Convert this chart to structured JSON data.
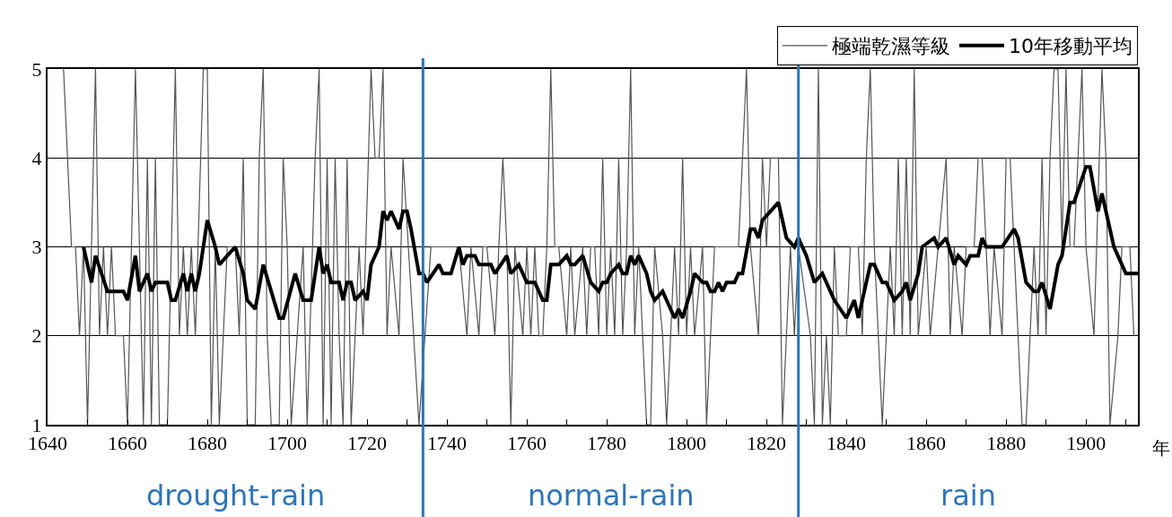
{
  "chart_data": {
    "type": "line",
    "xlabel": "年",
    "xlim": [
      1640,
      1913
    ],
    "xticks": [
      1640,
      {
        "value": 1650,
        "label": null
      },
      1660,
      {
        "value": 1670,
        "label": null
      },
      1680,
      {
        "value": 1690,
        "label": null
      },
      1700,
      {
        "value": 1710,
        "label": null
      },
      1720,
      {
        "value": 1730,
        "label": null
      },
      1740,
      {
        "value": 1750,
        "label": null
      },
      1760,
      {
        "value": 1770,
        "label": null
      },
      1780,
      {
        "value": 1790,
        "label": null
      },
      1800,
      {
        "value": 1810,
        "label": null
      },
      1820,
      {
        "value": 1830,
        "label": null
      },
      1840,
      {
        "value": 1850,
        "label": null
      },
      1860,
      {
        "value": 1870,
        "label": null
      },
      1880,
      {
        "value": 1890,
        "label": null
      },
      1900,
      {
        "value": 1910,
        "label": null
      }
    ],
    "ylim": [
      1,
      5
    ],
    "yticks": [
      1,
      2,
      3,
      4,
      5
    ],
    "grid": "y",
    "legend": "top right",
    "marker": "none",
    "line_style": "solid",
    "series": [
      {
        "name": "極端乾濕等級",
        "color": "#555555",
        "x": [
          1644,
          1646,
          1647,
          1648,
          1649,
          1650,
          1652,
          1653,
          1654,
          1655,
          1656,
          1657,
          1659,
          1660,
          1662,
          1663,
          1664,
          1665,
          1666,
          1667,
          1668,
          1670,
          1672,
          1673,
          1674,
          1675,
          1676,
          1677,
          1679,
          1680,
          1681,
          1682,
          1683,
          1685,
          1687,
          1688,
          1689,
          1690,
          1692,
          1693,
          1694,
          1695,
          1696,
          1698,
          1699,
          1700,
          1701,
          1704,
          1705,
          1707,
          1708,
          1709,
          1710,
          1711,
          1712,
          1713,
          1714,
          1715,
          1716,
          1718,
          1719,
          1721,
          1722,
          1723,
          1724,
          1725,
          1726,
          1728,
          1729,
          1733,
          1736,
          1743,
          1745,
          1746,
          1748,
          1749,
          1750,
          1752,
          1753,
          1754,
          1755,
          1756,
          1757,
          1759,
          1760,
          1761,
          1762,
          1763,
          1764,
          1765,
          1766,
          1767,
          1768,
          1770,
          1771,
          1772,
          1774,
          1775,
          1776,
          1777,
          1778,
          1779,
          1780,
          1781,
          1782,
          1783,
          1784,
          1785,
          1786,
          1787,
          1788,
          1790,
          1791,
          1792,
          1794,
          1795,
          1797,
          1798,
          1799,
          1800,
          1801,
          1802,
          1804,
          1805,
          1807,
          1810,
          1813,
          1815,
          1816,
          1818,
          1819,
          1820,
          1821,
          1823,
          1824,
          1826,
          1827,
          1828,
          1831,
          1832,
          1833,
          1834,
          1835,
          1836,
          1837,
          1838,
          1840,
          1841,
          1843,
          1844,
          1845,
          1846,
          1847,
          1849,
          1850,
          1851,
          1852,
          1853,
          1854,
          1855,
          1856,
          1857,
          1858,
          1860,
          1861,
          1863,
          1865,
          1866,
          1867,
          1869,
          1870,
          1872,
          1873,
          1874,
          1876,
          1877,
          1879,
          1880,
          1881,
          1883,
          1884,
          1885,
          1886,
          1887,
          1888,
          1889,
          1890,
          1891,
          1892,
          1893,
          1894,
          1895,
          1896,
          1897,
          1898,
          1899,
          1900,
          1902,
          1904,
          1905,
          1906,
          1908,
          1909,
          1911,
          1912
        ],
        "values": [
          5,
          3,
          3,
          2,
          3,
          1,
          5,
          2,
          3,
          2,
          3,
          2,
          2,
          1,
          5,
          3,
          1,
          4,
          1,
          4,
          1,
          1,
          5,
          2,
          3,
          2,
          3,
          2,
          5,
          5,
          1,
          3,
          1,
          3,
          3,
          2,
          4,
          1,
          1,
          4,
          5,
          2,
          1,
          1,
          4,
          3,
          1,
          3,
          1,
          4,
          5,
          1,
          4,
          1,
          4,
          2,
          1,
          4,
          1,
          3,
          2,
          5,
          4,
          4,
          5,
          2,
          3,
          2,
          4,
          1,
          3,
          3,
          2,
          3,
          2,
          3,
          3,
          2,
          3,
          4,
          3,
          1,
          3,
          2,
          3,
          2,
          3,
          2,
          2,
          3,
          5,
          3,
          3,
          2,
          3,
          2,
          3,
          2,
          3,
          3,
          2,
          4,
          2,
          3,
          2,
          4,
          2,
          3,
          5,
          2,
          3,
          1,
          1,
          3,
          2,
          1,
          3,
          2,
          4,
          2,
          3,
          2,
          3,
          1,
          3,
          3,
          3,
          5,
          3,
          2,
          4,
          3,
          4,
          4,
          1,
          3,
          2,
          3,
          2,
          1,
          5,
          1,
          2,
          1,
          3,
          2,
          2,
          3,
          3,
          2,
          4,
          5,
          3,
          1,
          2,
          3,
          2,
          4,
          2,
          4,
          2,
          5,
          2,
          3,
          2,
          3,
          4,
          2,
          3,
          2,
          3,
          3,
          4,
          4,
          2,
          3,
          2,
          4,
          4,
          2,
          1,
          1,
          2,
          3,
          2,
          4,
          2,
          4,
          5,
          5,
          3,
          5,
          3,
          3,
          4,
          5,
          3,
          2,
          5,
          4,
          1,
          2,
          3,
          3,
          2
        ]
      },
      {
        "name": "10年移動平均",
        "color": "#000000",
        "x": [
          1649,
          1651,
          1652,
          1655,
          1659,
          1660,
          1662,
          1663,
          1665,
          1666,
          1667,
          1670,
          1671,
          1672,
          1674,
          1675,
          1676,
          1677,
          1678,
          1680,
          1682,
          1683,
          1685,
          1687,
          1689,
          1690,
          1692,
          1694,
          1696,
          1698,
          1699,
          1702,
          1704,
          1706,
          1708,
          1709,
          1710,
          1711,
          1713,
          1714,
          1715,
          1716,
          1717,
          1719,
          1720,
          1721,
          1723,
          1724,
          1725,
          1726,
          1728,
          1729,
          1730,
          1731,
          1733,
          1734,
          1735,
          1738,
          1739,
          1741,
          1743,
          1744,
          1745,
          1747,
          1748,
          1751,
          1752,
          1755,
          1756,
          1758,
          1760,
          1762,
          1764,
          1765,
          1766,
          1768,
          1770,
          1771,
          1772,
          1774,
          1776,
          1778,
          1779,
          1780,
          1781,
          1783,
          1784,
          1785,
          1786,
          1787,
          1788,
          1790,
          1791,
          1792,
          1794,
          1796,
          1797,
          1798,
          1799,
          1801,
          1802,
          1804,
          1805,
          1806,
          1807,
          1808,
          1809,
          1810,
          1812,
          1813,
          1814,
          1816,
          1817,
          1818,
          1819,
          1821,
          1823,
          1825,
          1827,
          1828,
          1830,
          1832,
          1834,
          1837,
          1840,
          1842,
          1843,
          1846,
          1847,
          1849,
          1850,
          1852,
          1854,
          1855,
          1856,
          1858,
          1859,
          1862,
          1863,
          1865,
          1867,
          1868,
          1870,
          1871,
          1873,
          1874,
          1875,
          1879,
          1882,
          1883,
          1885,
          1887,
          1888,
          1889,
          1891,
          1893,
          1894,
          1896,
          1897,
          1900,
          1901,
          1903,
          1904,
          1906,
          1907,
          1910,
          1913
        ],
        "values": [
          3.0,
          2.6,
          2.9,
          2.5,
          2.5,
          2.4,
          2.9,
          2.5,
          2.7,
          2.5,
          2.6,
          2.6,
          2.4,
          2.4,
          2.7,
          2.5,
          2.7,
          2.5,
          2.7,
          3.3,
          3.0,
          2.8,
          2.9,
          3.0,
          2.7,
          2.4,
          2.3,
          2.8,
          2.5,
          2.2,
          2.2,
          2.7,
          2.4,
          2.4,
          3.0,
          2.7,
          2.8,
          2.6,
          2.6,
          2.4,
          2.6,
          2.6,
          2.4,
          2.5,
          2.4,
          2.8,
          3.0,
          3.4,
          3.3,
          3.4,
          3.2,
          3.4,
          3.4,
          3.2,
          2.7,
          2.7,
          2.6,
          2.8,
          2.7,
          2.7,
          3.0,
          2.8,
          2.9,
          2.9,
          2.8,
          2.8,
          2.7,
          2.9,
          2.7,
          2.8,
          2.6,
          2.6,
          2.4,
          2.4,
          2.8,
          2.8,
          2.9,
          2.8,
          2.8,
          2.9,
          2.6,
          2.5,
          2.6,
          2.6,
          2.7,
          2.8,
          2.7,
          2.7,
          2.9,
          2.8,
          2.9,
          2.7,
          2.5,
          2.4,
          2.5,
          2.3,
          2.2,
          2.3,
          2.2,
          2.5,
          2.7,
          2.6,
          2.6,
          2.5,
          2.5,
          2.6,
          2.5,
          2.6,
          2.6,
          2.7,
          2.7,
          3.2,
          3.2,
          3.1,
          3.3,
          3.4,
          3.5,
          3.1,
          3.0,
          3.1,
          2.9,
          2.6,
          2.7,
          2.4,
          2.2,
          2.4,
          2.2,
          2.8,
          2.8,
          2.6,
          2.6,
          2.4,
          2.5,
          2.6,
          2.4,
          2.7,
          3.0,
          3.1,
          3.0,
          3.1,
          2.8,
          2.9,
          2.8,
          2.9,
          2.9,
          3.1,
          3.0,
          3.0,
          3.2,
          3.1,
          2.6,
          2.5,
          2.5,
          2.6,
          2.3,
          2.8,
          2.9,
          3.5,
          3.5,
          3.9,
          3.9,
          3.4,
          3.6,
          3.2,
          3.0,
          2.7,
          2.7
        ]
      }
    ],
    "ref_lines": [
      {
        "axis": "x",
        "value": 1734,
        "color": "#2e75b6"
      },
      {
        "axis": "x",
        "value": 1828,
        "color": "#2e75b6"
      }
    ],
    "annotations": [
      "drought-rain",
      "normal-rain",
      "rain"
    ]
  }
}
